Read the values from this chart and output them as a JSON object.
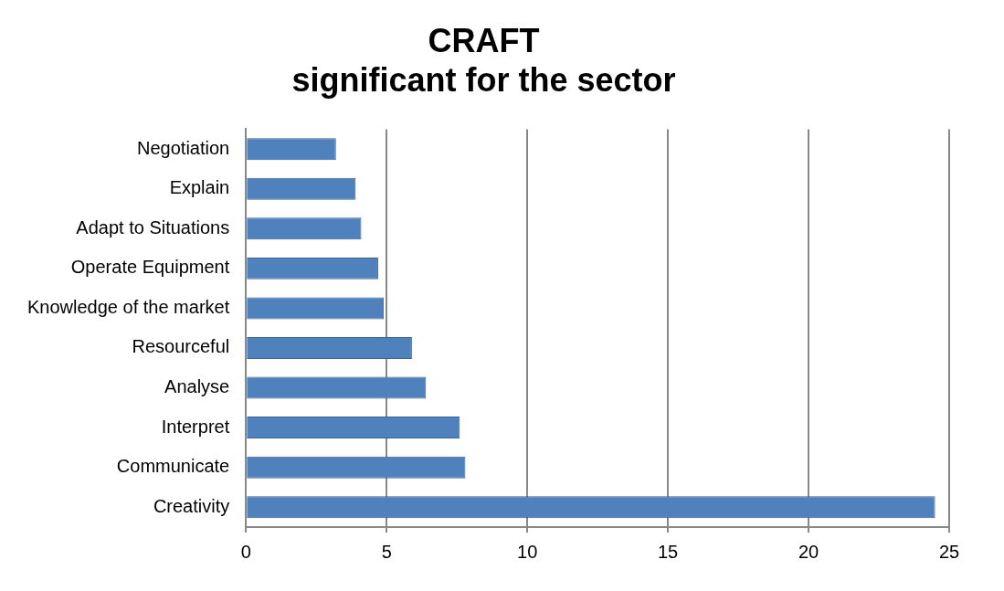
{
  "chart_data": {
    "type": "bar",
    "orientation": "horizontal",
    "title": "CRAFT\nsignificant for the sector",
    "categories": [
      "Negotiation",
      "Explain",
      "Adapt to Situations",
      "Operate Equipment",
      "Knowledge of the market",
      "Resourceful",
      "Analyse",
      "Interpret",
      "Communicate",
      "Creativity"
    ],
    "values": [
      3.2,
      3.9,
      4.1,
      4.7,
      4.9,
      5.9,
      6.4,
      7.6,
      7.8,
      24.5
    ],
    "color": "#4f81bd",
    "xlim": [
      0,
      25
    ],
    "xticks": [
      0,
      5,
      10,
      15,
      20,
      25
    ],
    "grid": "x",
    "legend": false
  }
}
